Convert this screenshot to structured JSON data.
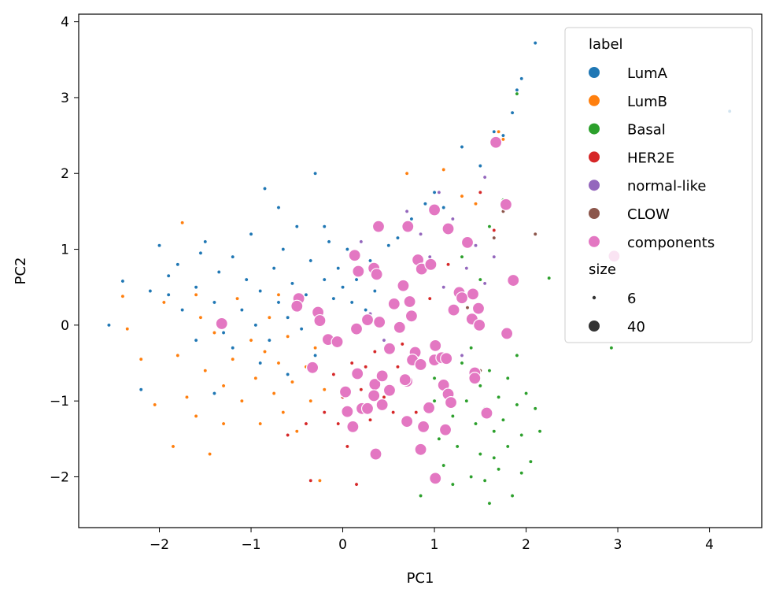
{
  "chart_data": {
    "type": "scatter",
    "title": "",
    "xlabel": "PC1",
    "ylabel": "PC2",
    "xlim": [
      -2.88,
      4.57
    ],
    "ylim": [
      -2.67,
      4.1
    ],
    "xticks": [
      -2,
      -1,
      0,
      1,
      2,
      3,
      4
    ],
    "yticks": [
      -2,
      -1,
      0,
      1,
      2,
      3,
      4
    ],
    "grid": false,
    "legend": {
      "placement": "top-right",
      "hue_title": "label",
      "size_title": "size",
      "sizes": [
        {
          "label": "6",
          "value": 6
        },
        {
          "label": "40",
          "value": 40
        }
      ]
    },
    "series": [
      {
        "name": "LumA",
        "color": "#1f77b4",
        "size": 6,
        "points": [
          [
            -2.55,
            0.0
          ],
          [
            -2.4,
            0.58
          ],
          [
            -2.1,
            0.45
          ],
          [
            -2.0,
            1.05
          ],
          [
            -1.9,
            0.65
          ],
          [
            -1.8,
            0.8
          ],
          [
            -1.75,
            0.2
          ],
          [
            -1.6,
            0.5
          ],
          [
            -1.55,
            0.95
          ],
          [
            -1.5,
            1.1
          ],
          [
            -1.4,
            0.3
          ],
          [
            -1.35,
            0.7
          ],
          [
            -1.3,
            -0.1
          ],
          [
            -1.2,
            0.9
          ],
          [
            -1.1,
            0.2
          ],
          [
            -1.05,
            0.6
          ],
          [
            -1.0,
            1.2
          ],
          [
            -0.95,
            0.0
          ],
          [
            -0.9,
            0.45
          ],
          [
            -0.85,
            1.8
          ],
          [
            -0.8,
            -0.2
          ],
          [
            -0.75,
            0.75
          ],
          [
            -0.7,
            0.3
          ],
          [
            -0.65,
            1.0
          ],
          [
            -0.6,
            0.1
          ],
          [
            -0.55,
            0.55
          ],
          [
            -0.5,
            1.3
          ],
          [
            -0.45,
            -0.05
          ],
          [
            -0.4,
            0.4
          ],
          [
            -0.35,
            0.85
          ],
          [
            -0.3,
            2.0
          ],
          [
            -0.25,
            0.2
          ],
          [
            -0.2,
            0.6
          ],
          [
            -0.15,
            1.1
          ],
          [
            -0.1,
            0.35
          ],
          [
            -0.05,
            0.75
          ],
          [
            0.0,
            0.5
          ],
          [
            0.05,
            1.0
          ],
          [
            0.1,
            0.3
          ],
          [
            0.15,
            0.6
          ],
          [
            0.2,
            1.1
          ],
          [
            0.25,
            0.2
          ],
          [
            0.3,
            0.85
          ],
          [
            0.35,
            0.45
          ],
          [
            0.4,
            1.3
          ],
          [
            0.5,
            1.05
          ],
          [
            0.6,
            1.15
          ],
          [
            0.75,
            1.4
          ],
          [
            0.9,
            1.6
          ],
          [
            1.0,
            1.75
          ],
          [
            1.1,
            1.55
          ],
          [
            1.3,
            2.35
          ],
          [
            1.5,
            2.1
          ],
          [
            1.65,
            2.55
          ],
          [
            1.75,
            2.5
          ],
          [
            1.85,
            2.8
          ],
          [
            1.9,
            3.1
          ],
          [
            1.95,
            3.25
          ],
          [
            2.1,
            3.72
          ],
          [
            4.22,
            2.82
          ],
          [
            -1.6,
            -0.2
          ],
          [
            -1.2,
            -0.3
          ],
          [
            -0.9,
            -0.5
          ],
          [
            -0.6,
            -0.65
          ],
          [
            -0.3,
            -0.4
          ],
          [
            -2.2,
            -0.85
          ],
          [
            -1.4,
            -0.9
          ],
          [
            -0.7,
            1.55
          ],
          [
            -1.9,
            0.4
          ],
          [
            -0.2,
            1.3
          ]
        ]
      },
      {
        "name": "LumB",
        "color": "#ff7f0e",
        "size": 6,
        "points": [
          [
            -2.4,
            0.38
          ],
          [
            -2.35,
            -0.05
          ],
          [
            -2.2,
            -0.45
          ],
          [
            -2.05,
            -1.05
          ],
          [
            -1.95,
            0.3
          ],
          [
            -1.8,
            -0.4
          ],
          [
            -1.75,
            1.35
          ],
          [
            -1.7,
            -0.95
          ],
          [
            -1.6,
            -1.2
          ],
          [
            -1.55,
            0.1
          ],
          [
            -1.5,
            -0.6
          ],
          [
            -1.45,
            -1.7
          ],
          [
            -1.4,
            -0.1
          ],
          [
            -1.3,
            -0.8
          ],
          [
            -1.2,
            -0.45
          ],
          [
            -1.15,
            0.35
          ],
          [
            -1.1,
            -1.0
          ],
          [
            -1.0,
            -0.2
          ],
          [
            -0.95,
            -0.7
          ],
          [
            -0.9,
            -1.3
          ],
          [
            -0.85,
            -0.35
          ],
          [
            -0.8,
            0.1
          ],
          [
            -0.75,
            -0.9
          ],
          [
            -0.7,
            -0.5
          ],
          [
            -0.65,
            -1.15
          ],
          [
            -0.6,
            -0.15
          ],
          [
            -0.55,
            -0.75
          ],
          [
            -0.5,
            -1.4
          ],
          [
            -0.45,
            0.35
          ],
          [
            -0.4,
            -0.55
          ],
          [
            -0.35,
            -1.0
          ],
          [
            -0.3,
            -0.3
          ],
          [
            -0.25,
            -2.05
          ],
          [
            -0.2,
            -0.85
          ],
          [
            0.7,
            2.0
          ],
          [
            1.1,
            2.05
          ],
          [
            1.3,
            1.7
          ],
          [
            1.45,
            1.6
          ],
          [
            1.7,
            2.55
          ],
          [
            1.75,
            2.45
          ],
          [
            -1.85,
            -1.6
          ],
          [
            -1.3,
            -1.3
          ],
          [
            -0.7,
            0.4
          ],
          [
            -1.6,
            0.4
          ]
        ]
      },
      {
        "name": "Basal",
        "color": "#2ca02c",
        "size": 6,
        "points": [
          [
            0.85,
            -2.25
          ],
          [
            1.0,
            -0.7
          ],
          [
            1.05,
            -1.5
          ],
          [
            1.1,
            -1.85
          ],
          [
            1.15,
            -0.9
          ],
          [
            1.2,
            -1.2
          ],
          [
            1.25,
            -1.6
          ],
          [
            1.3,
            -0.5
          ],
          [
            1.35,
            -1.0
          ],
          [
            1.4,
            -2.0
          ],
          [
            1.45,
            -1.3
          ],
          [
            1.5,
            -0.8
          ],
          [
            1.5,
            -1.7
          ],
          [
            1.55,
            -1.1
          ],
          [
            1.6,
            -2.35
          ],
          [
            1.6,
            -0.6
          ],
          [
            1.65,
            -1.4
          ],
          [
            1.7,
            -0.95
          ],
          [
            1.7,
            -1.9
          ],
          [
            1.75,
            -1.25
          ],
          [
            1.8,
            -0.7
          ],
          [
            1.8,
            -1.6
          ],
          [
            1.85,
            -2.25
          ],
          [
            1.9,
            -1.05
          ],
          [
            1.9,
            -0.4
          ],
          [
            1.95,
            -1.45
          ],
          [
            2.0,
            -0.9
          ],
          [
            2.05,
            -1.8
          ],
          [
            2.1,
            -1.1
          ],
          [
            2.15,
            -1.4
          ],
          [
            1.3,
            0.9
          ],
          [
            1.5,
            0.6
          ],
          [
            1.6,
            1.3
          ],
          [
            1.75,
            1.65
          ],
          [
            1.9,
            3.05
          ],
          [
            2.25,
            0.62
          ],
          [
            2.93,
            -0.3
          ],
          [
            1.4,
            -0.3
          ],
          [
            1.2,
            -2.1
          ],
          [
            1.65,
            -1.75
          ],
          [
            1.0,
            -1.0
          ],
          [
            0.9,
            -1.1
          ],
          [
            1.55,
            -2.05
          ],
          [
            1.95,
            -1.95
          ]
        ]
      },
      {
        "name": "HER2E",
        "color": "#d62728",
        "size": 6,
        "points": [
          [
            -0.6,
            -1.45
          ],
          [
            -0.4,
            -1.3
          ],
          [
            -0.35,
            -2.05
          ],
          [
            -0.2,
            -1.15
          ],
          [
            -0.1,
            -0.65
          ],
          [
            0.05,
            -1.6
          ],
          [
            0.1,
            -0.5
          ],
          [
            0.15,
            -2.1
          ],
          [
            0.2,
            -0.85
          ],
          [
            0.25,
            -0.55
          ],
          [
            0.3,
            -1.25
          ],
          [
            0.35,
            -0.35
          ],
          [
            0.45,
            -0.95
          ],
          [
            0.55,
            -1.15
          ],
          [
            0.6,
            -0.55
          ],
          [
            0.65,
            -0.25
          ],
          [
            0.75,
            -0.75
          ],
          [
            0.8,
            -1.15
          ],
          [
            0.95,
            0.35
          ],
          [
            1.15,
            0.8
          ],
          [
            1.5,
            1.75
          ],
          [
            1.65,
            1.25
          ],
          [
            2.1,
            1.2
          ],
          [
            0.0,
            -0.95
          ],
          [
            -0.05,
            -1.3
          ]
        ]
      },
      {
        "name": "normal-like",
        "color": "#9467bd",
        "size": 6,
        "points": [
          [
            0.7,
            1.5
          ],
          [
            0.85,
            1.2
          ],
          [
            0.95,
            0.9
          ],
          [
            1.05,
            1.75
          ],
          [
            1.1,
            0.5
          ],
          [
            1.2,
            1.4
          ],
          [
            1.35,
            0.75
          ],
          [
            1.45,
            1.05
          ],
          [
            1.55,
            1.95
          ],
          [
            1.65,
            0.9
          ],
          [
            0.3,
            0.15
          ],
          [
            0.45,
            -0.2
          ],
          [
            1.3,
            -0.4
          ],
          [
            1.55,
            0.55
          ],
          [
            0.2,
            1.1
          ]
        ]
      },
      {
        "name": "CLOW",
        "color": "#8c564b",
        "size": 6,
        "points": [
          [
            1.36,
            0.23
          ],
          [
            1.75,
            1.5
          ],
          [
            1.65,
            1.15
          ],
          [
            2.1,
            1.2
          ],
          [
            1.5,
            -0.6
          ]
        ]
      },
      {
        "name": "components",
        "color": "#e377c2",
        "size": 40,
        "points": [
          [
            -1.32,
            0.02
          ],
          [
            -0.48,
            0.35
          ],
          [
            -0.5,
            0.25
          ],
          [
            -0.27,
            0.17
          ],
          [
            -0.25,
            0.06
          ],
          [
            -0.16,
            -0.19
          ],
          [
            -0.06,
            -0.22
          ],
          [
            -0.33,
            -0.56
          ],
          [
            0.15,
            -0.05
          ],
          [
            0.27,
            0.07
          ],
          [
            0.4,
            0.04
          ],
          [
            0.62,
            -0.03
          ],
          [
            0.51,
            -0.31
          ],
          [
            0.16,
            -0.64
          ],
          [
            0.03,
            -0.88
          ],
          [
            0.05,
            -1.14
          ],
          [
            0.11,
            -1.34
          ],
          [
            0.21,
            -1.1
          ],
          [
            0.27,
            -1.1
          ],
          [
            0.35,
            -0.78
          ],
          [
            0.43,
            -0.67
          ],
          [
            0.34,
            -0.93
          ],
          [
            0.43,
            -1.05
          ],
          [
            0.51,
            -0.86
          ],
          [
            0.36,
            -1.7
          ],
          [
            0.7,
            -0.74
          ],
          [
            0.68,
            -0.72
          ],
          [
            0.7,
            -1.27
          ],
          [
            0.88,
            -1.34
          ],
          [
            0.94,
            -1.09
          ],
          [
            0.85,
            -1.64
          ],
          [
            1.12,
            -1.38
          ],
          [
            1.01,
            -2.02
          ],
          [
            1.1,
            -0.79
          ],
          [
            1.15,
            -0.91
          ],
          [
            1.18,
            -1.02
          ],
          [
            0.79,
            -0.36
          ],
          [
            0.76,
            -0.46
          ],
          [
            0.85,
            -0.52
          ],
          [
            1.0,
            -0.46
          ],
          [
            1.01,
            -0.27
          ],
          [
            1.08,
            -0.43
          ],
          [
            1.13,
            -0.44
          ],
          [
            1.44,
            -0.63
          ],
          [
            1.44,
            -0.7
          ],
          [
            1.57,
            -1.16
          ],
          [
            1.79,
            -0.11
          ],
          [
            1.86,
            0.59
          ],
          [
            1.36,
            1.09
          ],
          [
            1.15,
            1.27
          ],
          [
            1.0,
            1.52
          ],
          [
            1.78,
            1.59
          ],
          [
            1.67,
            2.41
          ],
          [
            0.39,
            1.3
          ],
          [
            0.71,
            1.3
          ],
          [
            0.13,
            0.92
          ],
          [
            0.17,
            0.71
          ],
          [
            0.34,
            0.75
          ],
          [
            0.37,
            0.67
          ],
          [
            0.66,
            0.52
          ],
          [
            0.82,
            0.86
          ],
          [
            0.86,
            0.74
          ],
          [
            0.96,
            0.8
          ],
          [
            0.56,
            0.28
          ],
          [
            0.73,
            0.31
          ],
          [
            0.75,
            0.12
          ],
          [
            1.27,
            0.43
          ],
          [
            1.42,
            0.41
          ],
          [
            1.3,
            0.36
          ],
          [
            1.21,
            0.2
          ],
          [
            1.48,
            0.22
          ],
          [
            1.41,
            0.08
          ],
          [
            1.49,
            0.0
          ],
          [
            2.96,
            0.91
          ]
        ]
      }
    ]
  }
}
